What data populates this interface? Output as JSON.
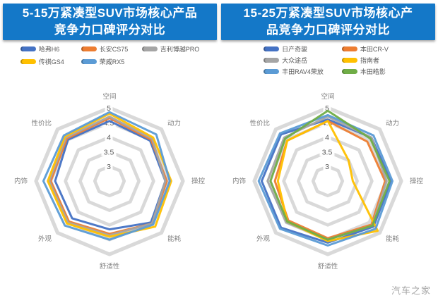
{
  "watermark": "汽车之家",
  "colors": {
    "title_bg": "#1478C8",
    "grid": "#D9D9D9",
    "axis_label": "#808080",
    "tick_label": "#595959",
    "legend_text": "#595959",
    "background": "#FFFFFF"
  },
  "chart_data": [
    {
      "type": "radar",
      "title": "5-15万紧凑型SUV市场核心产品竞争力口碑评分对比",
      "title_lines": [
        "5-15万紧凑型SUV市场核心产品",
        "竞争力口碑评分对比"
      ],
      "categories": [
        "空间",
        "动力",
        "操控",
        "能耗",
        "舒适性",
        "外观",
        "内饰",
        "性价比"
      ],
      "radial_ticks": [
        5,
        4.5,
        4,
        3.5,
        3
      ],
      "rmin": 2.5,
      "rmax": 5,
      "grid": true,
      "legend_position": "top",
      "series": [
        {
          "name": "哈弗H6",
          "color": "#4472C4",
          "values": [
            4.55,
            4.45,
            4.4,
            4.5,
            4.15,
            4.3,
            4.35,
            4.5
          ]
        },
        {
          "name": "长安CS75",
          "color": "#ED7D31",
          "values": [
            4.65,
            4.5,
            4.45,
            4.55,
            4.3,
            4.45,
            4.5,
            4.55
          ]
        },
        {
          "name": "吉利博越PRO",
          "color": "#A5A5A5",
          "values": [
            4.7,
            4.55,
            4.4,
            4.55,
            4.35,
            4.5,
            4.55,
            4.6
          ]
        },
        {
          "name": "传祺GS4",
          "color": "#FFC000",
          "values": [
            4.8,
            4.6,
            4.6,
            4.7,
            4.4,
            4.55,
            4.6,
            4.65
          ]
        },
        {
          "name": "荣威RX5",
          "color": "#5B9BD5",
          "values": [
            4.85,
            4.75,
            4.55,
            4.6,
            4.5,
            4.65,
            4.75,
            4.7
          ]
        }
      ]
    },
    {
      "type": "radar",
      "title": "15-25万紧凑型SUV市场核心产品竞争力口碑评分对比",
      "title_lines": [
        "15-25万紧凑型SUV市场核心产",
        "品竞争力口碑评分对比"
      ],
      "categories": [
        "空间",
        "动力",
        "操控",
        "能耗",
        "舒适性",
        "外观",
        "内饰",
        "性价比"
      ],
      "radial_ticks": [
        5,
        4.5,
        4,
        3.5,
        3
      ],
      "rmin": 2.5,
      "rmax": 5,
      "grid": true,
      "legend_position": "top",
      "series": [
        {
          "name": "日产奇骏",
          "color": "#4472C4",
          "values": [
            4.6,
            4.6,
            4.65,
            4.7,
            4.6,
            4.75,
            4.75,
            4.75
          ]
        },
        {
          "name": "本田CR-V",
          "color": "#ED7D31",
          "values": [
            4.55,
            4.4,
            4.45,
            4.6,
            4.45,
            4.4,
            4.3,
            4.45
          ]
        },
        {
          "name": "大众途岳",
          "color": "#A5A5A5",
          "values": [
            4.7,
            4.6,
            4.5,
            4.65,
            4.5,
            4.5,
            4.55,
            4.6
          ]
        },
        {
          "name": "指南者",
          "color": "#FFC000",
          "values": [
            4.55,
            3.5,
            3.35,
            4.9,
            4.55,
            4.45,
            4.2,
            4.45
          ]
        },
        {
          "name": "丰田RAV4荣放",
          "color": "#5B9BD5",
          "values": [
            4.75,
            4.7,
            4.7,
            4.8,
            4.7,
            4.8,
            4.85,
            4.8
          ]
        },
        {
          "name": "本田皓影",
          "color": "#70AD47",
          "values": [
            4.9,
            4.55,
            4.6,
            4.65,
            4.5,
            4.45,
            4.45,
            4.55
          ]
        }
      ]
    }
  ]
}
